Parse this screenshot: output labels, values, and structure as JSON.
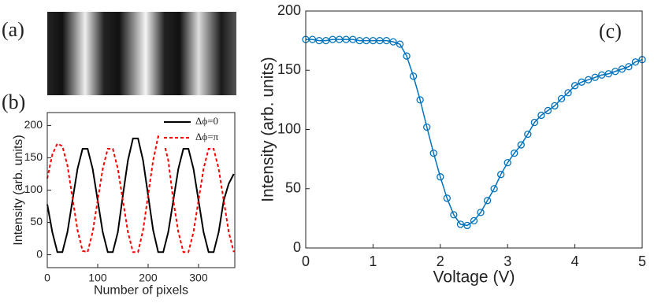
{
  "chart_data": [
    {
      "type": "line",
      "panel_label": "(b)",
      "xlabel": "Number of pixels",
      "ylabel": "Intensity (arb. units)",
      "xlim": [
        0,
        372
      ],
      "xticks": [
        0,
        100,
        200,
        300
      ],
      "ylim": [
        -20,
        220
      ],
      "yticks": [
        0,
        50,
        100,
        150,
        200
      ],
      "legend": "upper right",
      "x": [
        0,
        10,
        20,
        30,
        40,
        50,
        60,
        70,
        80,
        90,
        100,
        110,
        120,
        130,
        140,
        150,
        160,
        170,
        180,
        190,
        200,
        210,
        220,
        230,
        240,
        250,
        260,
        270,
        280,
        290,
        300,
        310,
        320,
        330,
        340,
        350,
        360,
        370
      ],
      "series": [
        {
          "name": "Δϕ=0",
          "color": "#000000",
          "dashed": false,
          "values": [
            78,
            35,
            4,
            4,
            35,
            84,
            133,
            164,
            164,
            133,
            84,
            35,
            4,
            4,
            35,
            92,
            146,
            180,
            180,
            146,
            92,
            38,
            4,
            4,
            35,
            84,
            133,
            164,
            164,
            133,
            84,
            35,
            4,
            4,
            35,
            84,
            110,
            125
          ]
        },
        {
          "name": "Δϕ=π",
          "color": "#ff0000",
          "dashed": true,
          "values": [
            118,
            155,
            172,
            168,
            138,
            88,
            38,
            6,
            4,
            35,
            84,
            133,
            164,
            164,
            133,
            84,
            35,
            4,
            4,
            38,
            92,
            146,
            183,
            178,
            146,
            84,
            35,
            4,
            4,
            35,
            84,
            133,
            164,
            164,
            133,
            84,
            35,
            4
          ]
        }
      ]
    },
    {
      "type": "line",
      "panel_label": "(c)",
      "xlabel": "Voltage (V)",
      "ylabel": "Intensity (arb. units)",
      "xlim": [
        0,
        5
      ],
      "xticks": [
        0,
        1,
        2,
        3,
        4,
        5
      ],
      "ylim": [
        0,
        200
      ],
      "yticks": [
        0,
        50,
        100,
        150,
        200
      ],
      "markers": true,
      "x": [
        0,
        0.1,
        0.2,
        0.3,
        0.4,
        0.5,
        0.6,
        0.7,
        0.8,
        0.9,
        1,
        1.1,
        1.2,
        1.3,
        1.4,
        1.5,
        1.6,
        1.7,
        1.8,
        1.9,
        2,
        2.1,
        2.2,
        2.3,
        2.4,
        2.5,
        2.6,
        2.7,
        2.8,
        2.9,
        3,
        3.1,
        3.2,
        3.3,
        3.4,
        3.5,
        3.6,
        3.7,
        3.8,
        3.9,
        4,
        4.1,
        4.2,
        4.3,
        4.4,
        4.5,
        4.6,
        4.7,
        4.8,
        4.9,
        5
      ],
      "series": [
        {
          "name": null,
          "color": "#0072bd",
          "dashed": false,
          "values": [
            176,
            176,
            175,
            175,
            176,
            176,
            176,
            176,
            175,
            175,
            175,
            175,
            175,
            174,
            172,
            162,
            145,
            125,
            102,
            80,
            60,
            42,
            28,
            20,
            19,
            23,
            30,
            40,
            50,
            62,
            72,
            80,
            87,
            96,
            106,
            112,
            116,
            120,
            126,
            131,
            137,
            140,
            142,
            144,
            146,
            147,
            149,
            151,
            153,
            157,
            159
          ]
        }
      ]
    }
  ],
  "image_panel_label": "(a)"
}
